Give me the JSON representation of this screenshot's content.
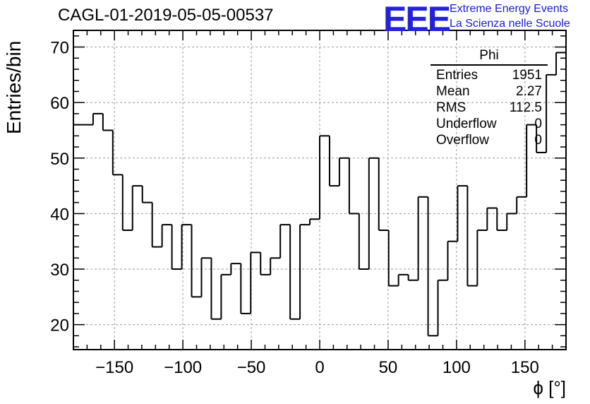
{
  "header": {
    "title": "CAGL-01-2019-05-05-00537",
    "logo_text": "EEE",
    "logo_line1": "Extreme Energy Events",
    "logo_line2": "La Scienza nelle Scuole"
  },
  "colors": {
    "logo": "#2222dd",
    "histogram": "#000000",
    "grid": "#9a9a9a"
  },
  "stats": {
    "title": "Phi",
    "rows": [
      {
        "label": "Entries",
        "value": "1951"
      },
      {
        "label": "Mean",
        "value": "2.27"
      },
      {
        "label": "RMS",
        "value": "112.5"
      },
      {
        "label": "Underflow",
        "value": "0"
      },
      {
        "label": "Overflow",
        "value": "0"
      }
    ]
  },
  "chart_data": {
    "type": "histogram",
    "title": "CAGL-01-2019-05-05-00537",
    "xlabel": "ϕ [°]",
    "ylabel": "Entries/bin",
    "xlim": [
      -180,
      180
    ],
    "ylim": [
      15.5,
      73
    ],
    "grid": true,
    "bin_width": 7.2,
    "xticks": [
      -150,
      -100,
      -50,
      0,
      50,
      100,
      150
    ],
    "xtick_labels": [
      "−150",
      "−100",
      "−50",
      "0",
      "50",
      "100",
      "150"
    ],
    "yticks": [
      20,
      30,
      40,
      50,
      60,
      70
    ],
    "values": [
      56,
      56,
      58,
      55,
      47,
      37,
      45,
      42,
      34,
      38,
      30,
      38,
      25,
      32,
      21,
      29,
      31,
      22,
      33,
      29,
      32,
      38,
      21,
      38,
      39,
      54,
      45,
      50,
      40,
      30,
      50,
      37,
      27,
      29,
      28,
      43,
      18,
      28,
      35,
      45,
      27,
      37,
      41,
      37,
      40,
      43,
      56,
      51,
      65,
      69
    ]
  }
}
